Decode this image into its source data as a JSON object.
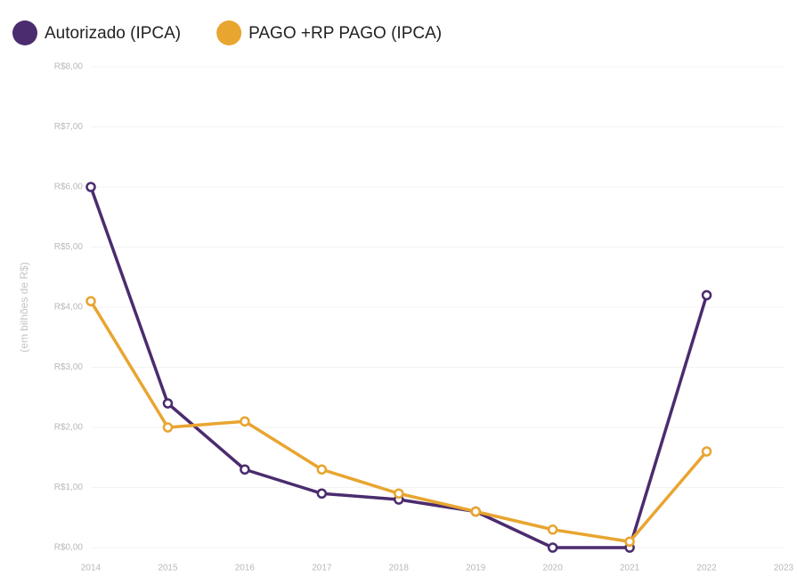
{
  "chart_data": {
    "type": "line",
    "y_label": "(em bilhões de R$)",
    "x": [
      2014,
      2015,
      2016,
      2017,
      2018,
      2019,
      2020,
      2021,
      2022
    ],
    "xlim": [
      2014,
      2023
    ],
    "xticks": [
      2014,
      2015,
      2016,
      2017,
      2018,
      2019,
      2020,
      2021,
      2022,
      2023
    ],
    "ylim": [
      0,
      8
    ],
    "yticks": [
      {
        "value": 0,
        "label": "R$0,00"
      },
      {
        "value": 1,
        "label": "R$1,00"
      },
      {
        "value": 2,
        "label": "R$2,00"
      },
      {
        "value": 3,
        "label": "R$3,00"
      },
      {
        "value": 4,
        "label": "R$4,00"
      },
      {
        "value": 5,
        "label": "R$5,00"
      },
      {
        "value": 6,
        "label": "R$6,00"
      },
      {
        "value": 7,
        "label": "R$7,00"
      },
      {
        "value": 8,
        "label": "R$8,00"
      }
    ],
    "grid": true,
    "legend": "top-left",
    "series": [
      {
        "name": "Autorizado (IPCA)",
        "color": "#4b2c6e",
        "values": [
          6.0,
          2.4,
          1.3,
          0.9,
          0.8,
          0.6,
          0.0,
          0.0,
          4.2
        ]
      },
      {
        "name": "PAGO +RP PAGO (IPCA)",
        "color": "#e8a530",
        "values": [
          4.1,
          2.0,
          2.1,
          1.3,
          0.9,
          0.6,
          0.3,
          0.1,
          1.6
        ]
      }
    ]
  }
}
